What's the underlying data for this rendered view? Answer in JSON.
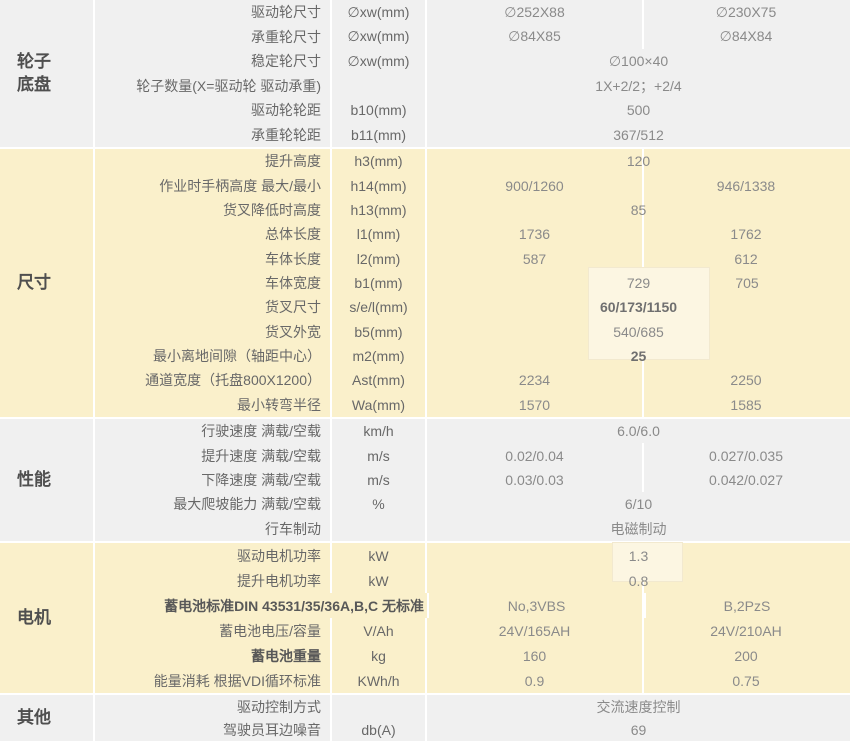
{
  "colors": {
    "cream_row_bg": "#FAF0CB",
    "gray_row_bg": "#F0F0F0",
    "separator": "#FFFFFF",
    "section_label_text": "#4F4F4F",
    "param_text": "#686868",
    "value_text": "#8A8A8A",
    "highlight_box_bg": "#FCF6E2"
  },
  "table": {
    "sections": [
      {
        "id": "wheels-chassis",
        "label_lines": [
          "轮子",
          "底盘"
        ],
        "rows": [
          {
            "name": "驱动轮尺寸",
            "sym": "∅xw(mm)",
            "v1": "∅252X88",
            "v2": "∅230X75"
          },
          {
            "name": "承重轮尺寸",
            "sym": "∅xw(mm)",
            "v1": "∅84X85",
            "v2": "∅84X84"
          },
          {
            "name": "稳定轮尺寸",
            "sym": "∅xw(mm)",
            "merged": "∅100×40"
          },
          {
            "name": "轮子数量(X=驱动轮 驱动承重)",
            "sym": "",
            "merged": "1X+2/2；+2/4"
          },
          {
            "name": "驱动轮轮距",
            "sym": "b10(mm)",
            "merged": "500"
          },
          {
            "name": "承重轮轮距",
            "sym": "b11(mm)",
            "merged": "367/512"
          }
        ]
      },
      {
        "id": "dimensions",
        "label_lines": [
          "尺寸"
        ],
        "rows": [
          {
            "name": "提升高度",
            "sym": "h3(mm)",
            "merged": "120"
          },
          {
            "name": "作业时手柄高度 最大/最小",
            "sym": "h14(mm)",
            "v1": "900/1260",
            "v2": "946/1338"
          },
          {
            "name": "货叉降低时高度",
            "sym": "h13(mm)",
            "merged": "85"
          },
          {
            "name": "总体长度",
            "sym": "l1(mm)",
            "v1": "1736",
            "v2": "1762"
          },
          {
            "name": "车体长度",
            "sym": "l2(mm)",
            "v1": "587",
            "v2": "612"
          },
          {
            "name": "车体宽度",
            "sym": "b1(mm)",
            "v1": "729",
            "v2": "705"
          },
          {
            "name": "货叉尺寸",
            "sym": "s/e/l(mm)",
            "merged": "60/173/1150"
          },
          {
            "name": "货叉外宽",
            "sym": "b5(mm)",
            "merged": "540/685"
          },
          {
            "name": "最小离地间隙（轴距中心）",
            "sym": "m2(mm)",
            "merged": "25"
          },
          {
            "name": "通道宽度（托盘800X1200）",
            "sym": "Ast(mm)",
            "v1": "2234",
            "v2": "2250"
          },
          {
            "name": "最小转弯半径",
            "sym": "Wa(mm)",
            "v1": "1570",
            "v2": "1585"
          }
        ]
      },
      {
        "id": "performance",
        "label_lines": [
          "性能"
        ],
        "rows": [
          {
            "name": "行驶速度 满载/空载",
            "sym": "km/h",
            "merged": "6.0/6.0"
          },
          {
            "name": "提升速度 满载/空载",
            "sym": "m/s",
            "v1": "0.02/0.04",
            "v2": "0.027/0.035"
          },
          {
            "name": "下降速度 满载/空载",
            "sym": "m/s",
            "v1": "0.03/0.03",
            "v2": "0.042/0.027"
          },
          {
            "name": "最大爬坡能力 满载/空载",
            "sym": "%",
            "merged": "6/10"
          },
          {
            "name": "行车制动",
            "sym": "",
            "merged": "电磁制动"
          }
        ]
      },
      {
        "id": "motor",
        "label_lines": [
          "电机"
        ],
        "rows": [
          {
            "name": "驱动电机功率",
            "sym": "kW",
            "merged": "1.3"
          },
          {
            "name": "提升电机功率",
            "sym": "kW",
            "merged": "0.8"
          },
          {
            "name": "蓄电池标准DIN 43531/35/36A,B,C 无标准",
            "sym": "",
            "v1": "No,3VBS",
            "v2": "B,2PzS"
          },
          {
            "name": "蓄电池电压/容量",
            "sym": "V/Ah",
            "v1": "24V/165AH",
            "v2": "24V/210AH"
          },
          {
            "name": "蓄电池重量",
            "sym": "kg",
            "v1": "160",
            "v2": "200"
          },
          {
            "name": "能量消耗 根据VDI循环标准",
            "sym": "KWh/h",
            "v1": "0.9",
            "v2": "0.75"
          }
        ]
      },
      {
        "id": "other",
        "label_lines": [
          "其他"
        ],
        "rows": [
          {
            "name": "驱动控制方式",
            "sym": "",
            "merged": "交流速度控制"
          },
          {
            "name": "驾驶员耳边噪音",
            "sym": "db(A)",
            "merged": "69"
          }
        ]
      }
    ]
  }
}
